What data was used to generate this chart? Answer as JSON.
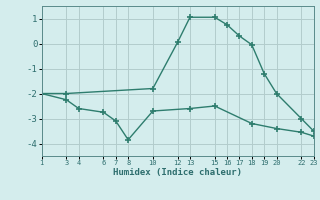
{
  "line1_x": [
    1,
    3,
    10,
    12,
    13,
    15,
    16,
    17,
    18,
    19,
    20,
    22,
    23
  ],
  "line1_y": [
    -2.0,
    -2.0,
    -1.8,
    0.05,
    1.05,
    1.05,
    0.75,
    0.3,
    -0.05,
    -1.2,
    -2.0,
    -3.0,
    -3.5
  ],
  "line2_x": [
    1,
    3,
    4,
    6,
    7,
    8,
    10,
    13,
    15,
    18,
    20,
    22,
    23
  ],
  "line2_y": [
    -2.0,
    -2.25,
    -2.6,
    -2.75,
    -3.1,
    -3.85,
    -2.7,
    -2.6,
    -2.5,
    -3.2,
    -3.4,
    -3.55,
    -3.7
  ],
  "color": "#2e7d6e",
  "xlabel": "Humidex (Indice chaleur)",
  "xlim": [
    1,
    23
  ],
  "ylim": [
    -4.5,
    1.5
  ],
  "yticks": [
    -4,
    -3,
    -2,
    -1,
    0,
    1
  ],
  "xticks": [
    1,
    3,
    4,
    6,
    7,
    8,
    10,
    12,
    13,
    15,
    16,
    17,
    18,
    19,
    20,
    22,
    23
  ],
  "bg_color": "#d4eded",
  "grid_color": "#b2cccc",
  "spine_color": "#5a8a8a"
}
